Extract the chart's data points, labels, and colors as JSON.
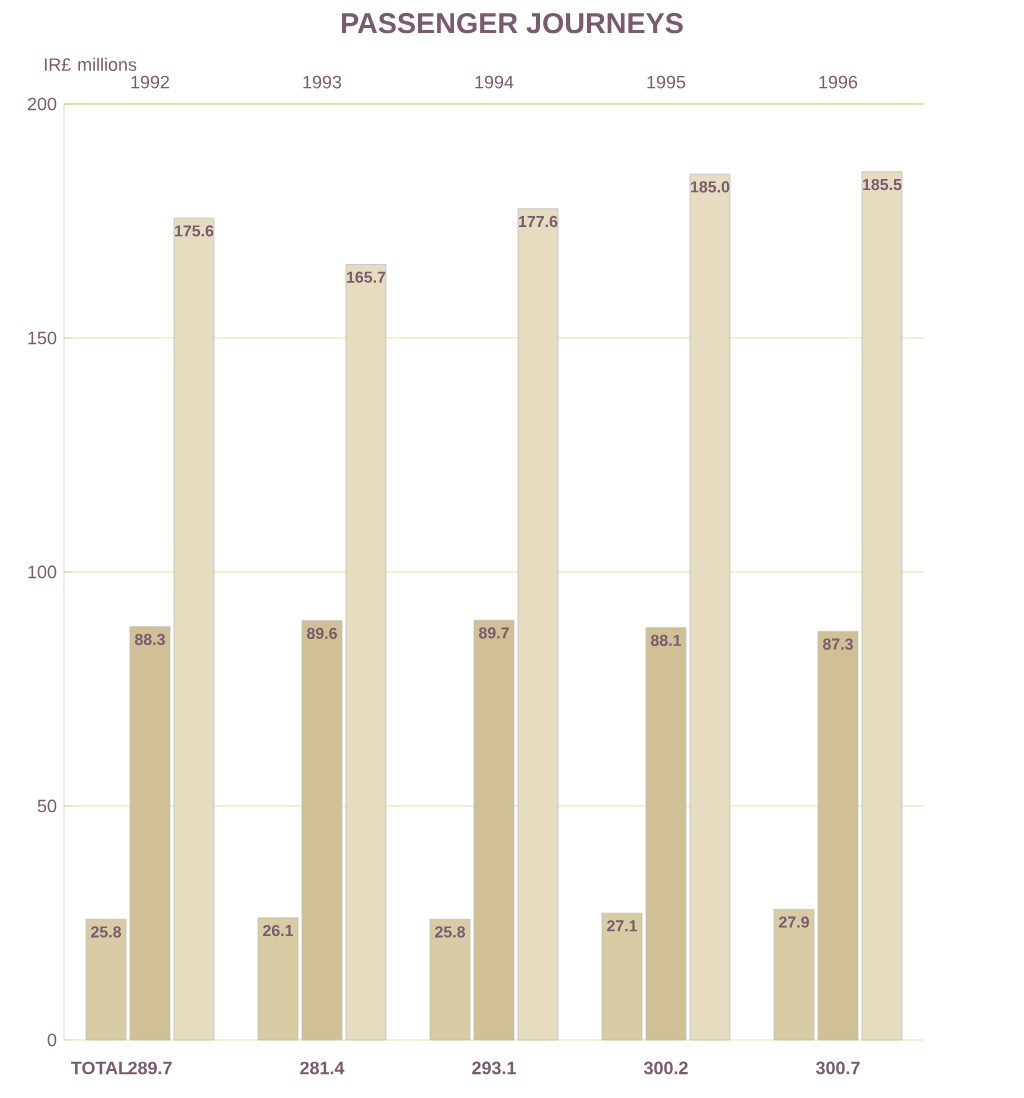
{
  "chart_data": {
    "type": "bar",
    "title": "PASSENGER JOURNEYS",
    "ylabel": "IR£ millions",
    "categories": [
      "1992",
      "1993",
      "1994",
      "1995",
      "1996"
    ],
    "series": [
      {
        "color": "#d8cca4",
        "values": [
          25.8,
          26.1,
          25.8,
          27.1,
          27.9
        ],
        "value_labels": [
          "25.8",
          "26.1",
          "25.8",
          "27.1",
          "27.9"
        ]
      },
      {
        "color": "#cfc195",
        "values": [
          88.3,
          89.6,
          89.7,
          88.1,
          87.3
        ],
        "value_labels": [
          "88.3",
          "89.6",
          "89.7",
          "88.1",
          "87.3"
        ]
      },
      {
        "color": "#e6dcc0",
        "values": [
          175.6,
          165.7,
          177.6,
          185.0,
          185.5
        ],
        "value_labels": [
          "175.6",
          "165.7",
          "177.6",
          "185.0",
          "185.5"
        ]
      }
    ],
    "ylim": [
      0,
      200
    ],
    "yticks": [
      0,
      50,
      100,
      150,
      200
    ],
    "grid": "y",
    "annotations": [
      "TOTAL"
    ],
    "totals": [
      "289.7",
      "281.4",
      "293.1",
      "300.2",
      "300.7"
    ]
  }
}
